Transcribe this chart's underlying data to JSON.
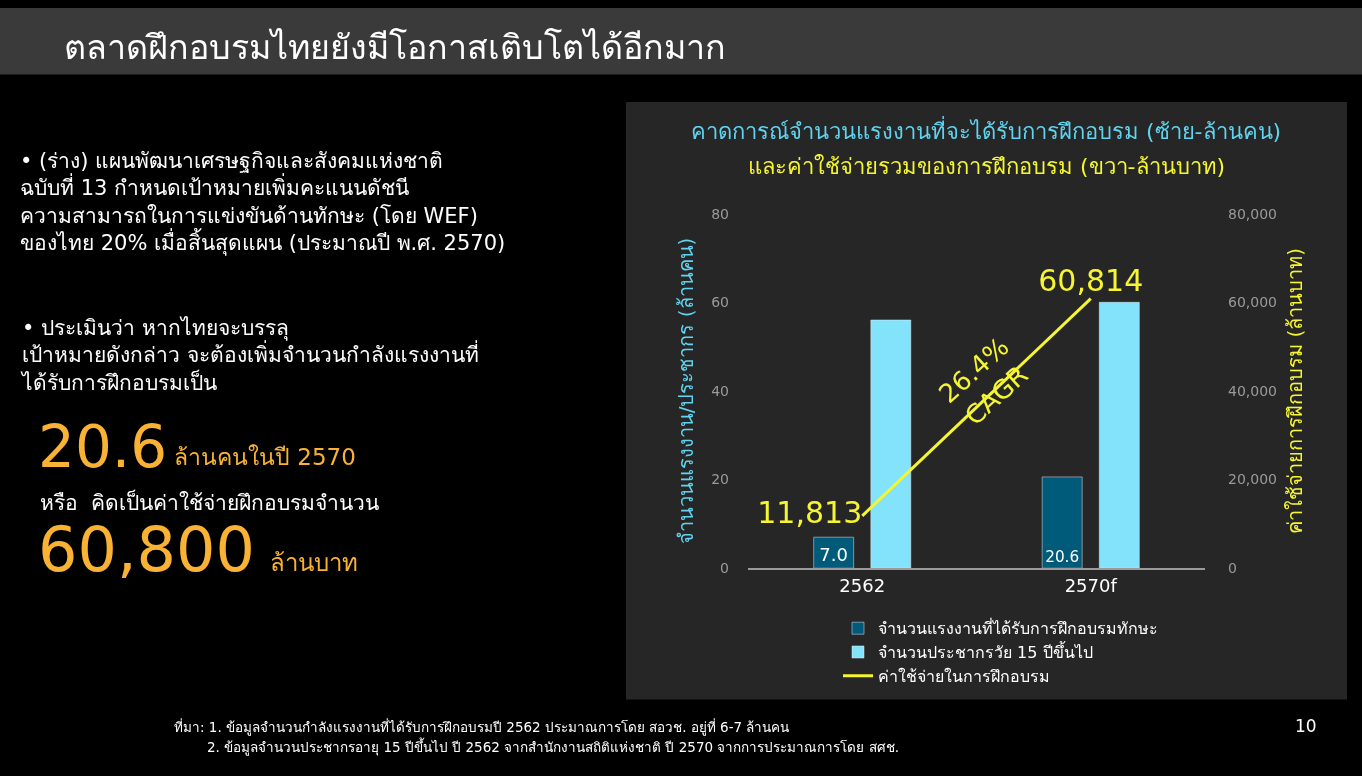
{
  "chart_data": {
    "type": "bar",
    "title": "ตลาดฝึกอบรมไทยยังมีโอกาสเติบโตได้อีกมาก",
    "subtitle": "คาดการณ์จำนวนแรงงานที่จะได้รับการฝึกอบรม (ซ้าย-ล้านคน)\nและค่าใช้จ่ายรวมของการฝึกอบรม (ขวา-ล้านบาท)",
    "ylabel": "จำนวนแรงงาน/ประชากร (ล้านคน)",
    "y2label": "ค่าใช้จ่ายการฝึกอบรม (ล้านบาท)",
    "categories": [
      "2562",
      "2570f"
    ],
    "series": [
      {
        "name": "จำนวนแรงงานที่ได้รับการฝึกอบรมทักษะ",
        "color": "#005a7a",
        "values": [
          7.0,
          20.6
        ],
        "value_labels": [
          "7.0",
          "20.6"
        ]
      },
      {
        "name": "จำนวนประชากรวัย 15 ปีขึ้นไป",
        "color": "#82e3fa",
        "values": [
          56,
          60
        ]
      },
      {
        "name": "ค่าใช้จ่ายในการฝึกอบรม",
        "type": "line",
        "axis": "y2",
        "color": "#f5f531",
        "values": [
          11813,
          60814
        ],
        "value_labels": [
          "11,813",
          "60,814"
        ]
      }
    ],
    "ylim": [
      0,
      80
    ],
    "yticks": [
      0,
      20,
      40,
      60,
      80
    ],
    "y2lim": [
      0,
      80000
    ],
    "y2ticks": [
      0,
      {
        "value": 20000,
        "label": "20,000"
      },
      {
        "value": 40000,
        "label": "40,000"
      },
      {
        "value": 60000,
        "label": "60,000"
      },
      {
        "value": 80000,
        "label": "80,000"
      }
    ],
    "grid": false,
    "legend": "bottom",
    "marker": "none",
    "line_style": "solid",
    "annotations": [
      "• (ร่าง) แผนพัฒนาเศรษฐกิจและสังคมแห่งชาติ\nฉบับที่ 13 กำหนดเป้าหมายเพิ่มคะแนนดัชนี\nความสามารถในการแข่งขันด้านทักษะ (โดย WEF)\nของไทย 20% เมื่อสิ้นสุดแผน (ประมาณปี พ.ศ. 2570)",
      "• ประเมินว่า หากไทยจะบรรลุ\nเป้าหมายดังกล่าว จะต้องเพิ่มจำนวนกำลังแรงงานที่\nได้รับการฝึกอบรมเป็น",
      "20.6",
      "ล้านคนในปี 2570",
      "หรือ  คิดเป็นค่าใช้จ่ายฝึกอบรมจำนวน",
      "60,800",
      "ล้านบาท",
      "ที่มา: 1. ข้อมูลจำนวนกำลังแรงงานที่ได้รับการฝึกอบรมปี 2562 ประมาณการโดย สอวช. อยู่ที่ 6-7 ล้านคน",
      "2. ข้อมูลจำนวนประชากรอายุ 15 ปีขึ้นไป ปี 2562 จากสำนักงานสถิติแห่งชาติ ปี 2570 จากการประมาณการโดย สศช.",
      "26.4%\nCAGR",
      "10"
    ]
  }
}
